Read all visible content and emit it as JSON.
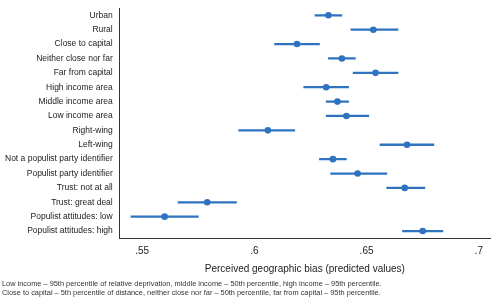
{
  "chart_data": {
    "type": "dot",
    "orientation": "horizontal",
    "x_label": "Perceived geographic bias (predicted values)",
    "annotations": [
      "Low income – 95th percentile of relative deprivation, middle income – 50th percentile, high income – 95th percentile.",
      "Close to capital – 5th percentile of distance, neither close nor far – 50th percentile, far from capital – 95th percentile."
    ],
    "categories": [
      "Urban",
      "Rural",
      "Close to capital",
      "Neither close nor far",
      "Far from capital",
      "High income area",
      "Middle income area",
      "Low income area",
      "Right-wing",
      "Left-wing",
      "Not a populist party identifier",
      "Populist party identifier",
      "Trust: not at all",
      "Trust: great deal",
      "Populist attitudes: low",
      "Populist attitudes: high"
    ],
    "values": [
      0.633,
      0.653,
      0.619,
      0.639,
      0.654,
      0.632,
      0.637,
      0.641,
      0.606,
      0.668,
      0.635,
      0.646,
      0.667,
      0.579,
      0.56,
      0.675
    ],
    "intervals": [
      [
        0.627,
        0.639
      ],
      [
        0.643,
        0.664
      ],
      [
        0.609,
        0.629
      ],
      [
        0.633,
        0.645
      ],
      [
        0.644,
        0.664
      ],
      [
        0.622,
        0.642
      ],
      [
        0.632,
        0.642
      ],
      [
        0.632,
        0.651
      ],
      [
        0.593,
        0.618
      ],
      [
        0.656,
        0.68
      ],
      [
        0.629,
        0.641
      ],
      [
        0.634,
        0.659
      ],
      [
        0.659,
        0.676
      ],
      [
        0.566,
        0.592
      ],
      [
        0.545,
        0.575
      ],
      [
        0.666,
        0.684
      ]
    ],
    "color": "#2f73c0",
    "marker": "circle",
    "xlim": [
      0.54,
      0.705
    ],
    "xticks": [
      {
        "value": 0.55,
        "label": ".55"
      },
      {
        "value": 0.6,
        "label": ".6"
      },
      {
        "value": 0.65,
        "label": ".65"
      },
      {
        "value": 0.7,
        "label": ".7"
      }
    ],
    "grid": false
  }
}
